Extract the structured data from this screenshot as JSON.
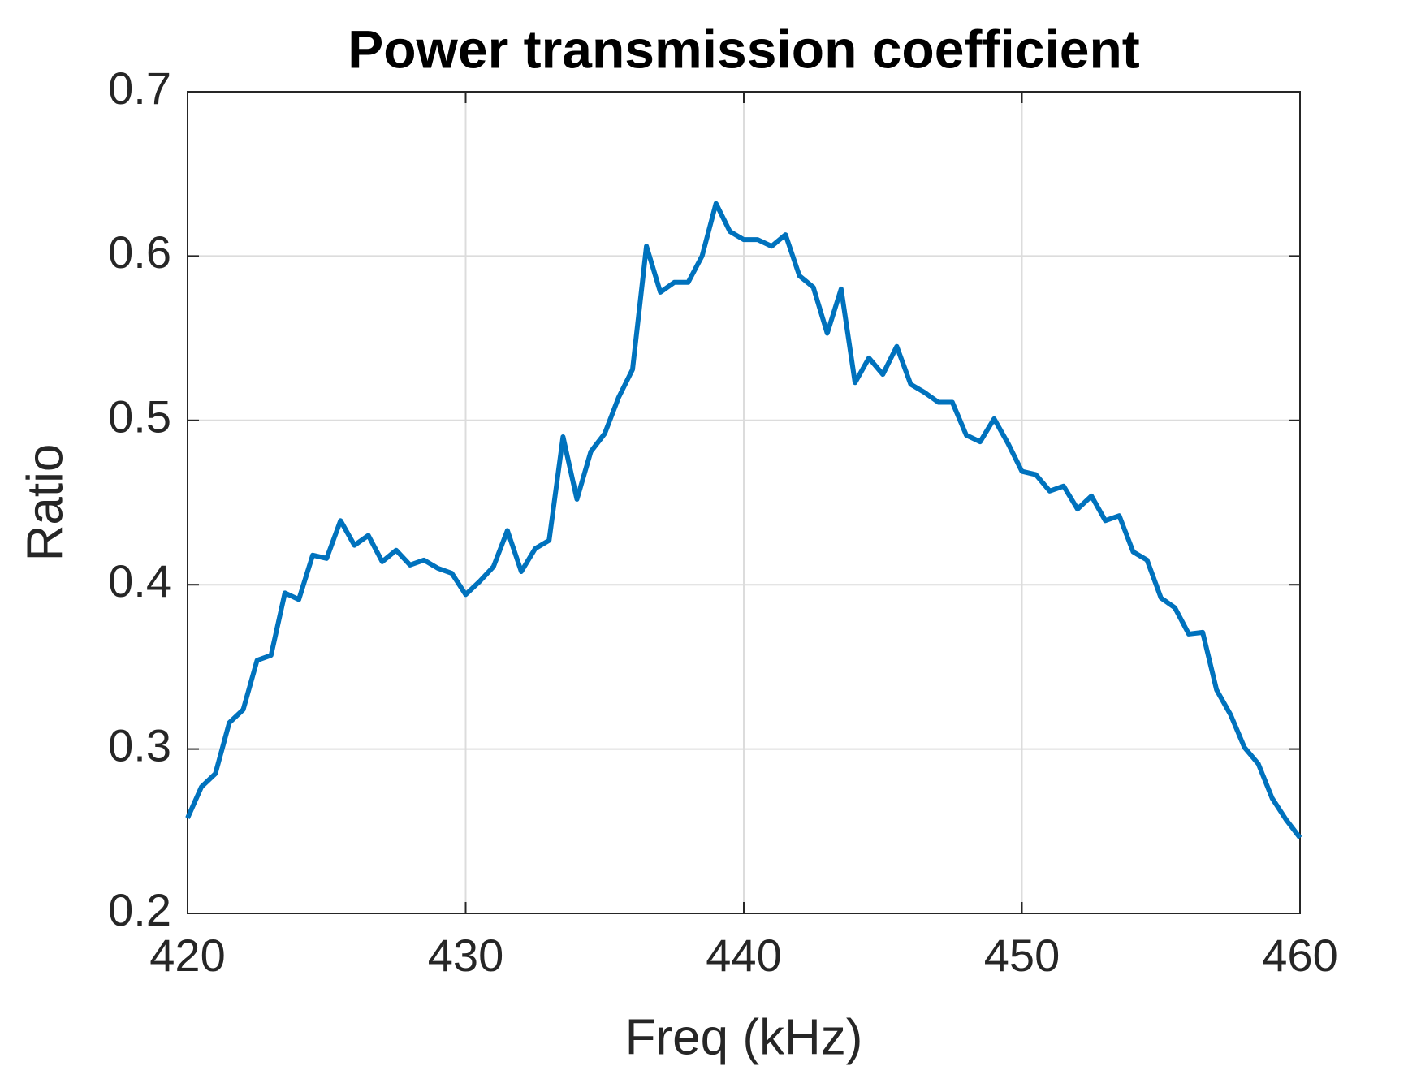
{
  "chart_data": {
    "type": "line",
    "title": "Power transmission coefficient",
    "x_label": "Freq (kHz)",
    "y_label": "Ratio",
    "x": [
      420,
      420.5,
      421,
      421.5,
      422,
      422.5,
      423,
      423.5,
      424,
      424.5,
      425,
      425.5,
      426,
      426.5,
      427,
      427.5,
      428,
      428.5,
      429,
      429.5,
      430,
      430.5,
      431,
      431.5,
      432,
      432.5,
      433,
      433.5,
      434,
      434.5,
      435,
      435.5,
      436,
      436.5,
      437,
      437.5,
      438,
      438.5,
      439,
      439.5,
      440,
      440.5,
      441,
      441.5,
      442,
      442.5,
      443,
      443.5,
      444,
      444.5,
      445,
      445.5,
      446,
      446.5,
      447,
      447.5,
      448,
      448.5,
      449,
      449.5,
      450,
      450.5,
      451,
      451.5,
      452,
      452.5,
      453,
      453.5,
      454,
      454.5,
      455,
      455.5,
      456,
      456.5,
      457,
      457.5,
      458,
      458.5,
      459,
      459.5,
      460
    ],
    "series": [
      {
        "name": "Ratio",
        "color": "#0072bd",
        "values": [
          0.258,
          0.277,
          0.285,
          0.316,
          0.324,
          0.354,
          0.357,
          0.395,
          0.391,
          0.418,
          0.416,
          0.439,
          0.424,
          0.43,
          0.414,
          0.421,
          0.412,
          0.415,
          0.41,
          0.407,
          0.394,
          0.402,
          0.411,
          0.433,
          0.408,
          0.422,
          0.427,
          0.49,
          0.452,
          0.481,
          0.492,
          0.514,
          0.531,
          0.606,
          0.578,
          0.584,
          0.584,
          0.6,
          0.632,
          0.615,
          0.61,
          0.61,
          0.606,
          0.613,
          0.588,
          0.581,
          0.553,
          0.58,
          0.523,
          0.538,
          0.528,
          0.545,
          0.522,
          0.517,
          0.511,
          0.511,
          0.491,
          0.487,
          0.501,
          0.486,
          0.469,
          0.467,
          0.457,
          0.46,
          0.446,
          0.454,
          0.439,
          0.442,
          0.42,
          0.415,
          0.392,
          0.386,
          0.37,
          0.371,
          0.336,
          0.321,
          0.301,
          0.291,
          0.27,
          0.257,
          0.246
        ]
      }
    ],
    "xlim": [
      420,
      460
    ],
    "xticks": [
      420,
      430,
      440,
      450,
      460
    ],
    "ylim": [
      0.2,
      0.7
    ],
    "yticks": [
      0.2,
      0.3,
      0.4,
      0.5,
      0.6,
      0.7
    ],
    "grid": true
  }
}
